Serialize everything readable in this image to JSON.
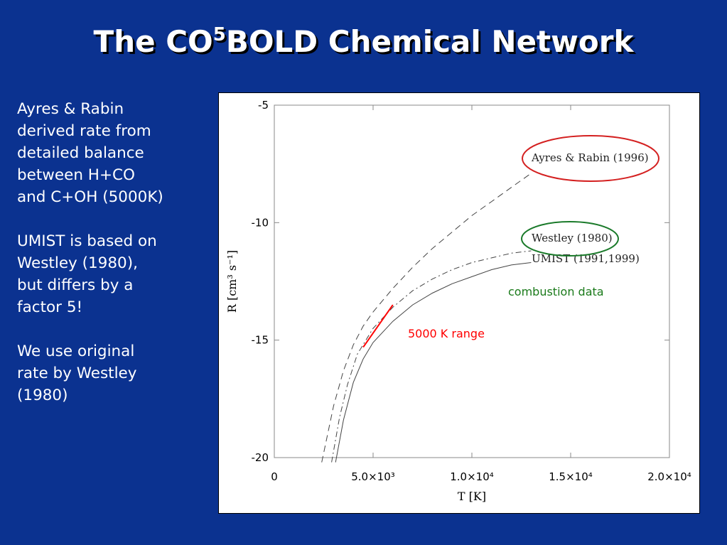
{
  "slide": {
    "title_pre": "The CO",
    "title_sup": "5",
    "title_post": "BOLD Chemical Network",
    "paragraphs": [
      "Ayres & Rabin\nderived rate from\ndetailed balance\nbetween H+CO\nand C+OH (5000K)",
      "UMIST is based on\nWestley (1980),\nbut differs by a\nfactor 5!",
      "We use original\nrate by Westley\n(1980)"
    ]
  },
  "chart_data": {
    "type": "line",
    "xlabel": "T [K]",
    "ylabel": "R [cm³ s⁻¹]",
    "xlim": [
      0,
      20000
    ],
    "ylim": [
      -20,
      -5
    ],
    "x_ticks": [
      0,
      5000,
      10000,
      15000,
      20000
    ],
    "x_tick_labels": [
      "0",
      "5.0×10³",
      "1.0×10⁴",
      "1.5×10⁴",
      "2.0×10⁴"
    ],
    "y_ticks": [
      -20,
      -15,
      -10,
      -5
    ],
    "y_tick_labels": [
      "-20",
      "-15",
      "-10",
      "-5"
    ],
    "grid": false,
    "series": [
      {
        "name": "Ayres & Rabin (1996)",
        "style": "dashed",
        "x": [
          2400,
          3000,
          3500,
          4000,
          4500,
          5000,
          6000,
          7000,
          8000,
          9000,
          10000,
          11000,
          12000,
          13000
        ],
        "y": [
          -20.2,
          -17.8,
          -16.3,
          -15.2,
          -14.4,
          -13.8,
          -12.8,
          -11.9,
          -11.1,
          -10.4,
          -9.7,
          -9.1,
          -8.5,
          -7.9
        ]
      },
      {
        "name": "Westley (1980)",
        "style": "dashdot",
        "x": [
          2900,
          3300,
          3700,
          4200,
          5000,
          6000,
          7000,
          8000,
          9000,
          10000,
          11000,
          12000,
          13000
        ],
        "y": [
          -20.2,
          -18.3,
          -16.9,
          -15.6,
          -14.5,
          -13.6,
          -12.9,
          -12.4,
          -12.0,
          -11.7,
          -11.5,
          -11.3,
          -11.2
        ]
      },
      {
        "name": "UMIST (1991,1999)",
        "style": "solid",
        "x": [
          3100,
          3500,
          4000,
          4500,
          5000,
          6000,
          7000,
          8000,
          9000,
          10000,
          11000,
          12000,
          13000
        ],
        "y": [
          -20.2,
          -18.4,
          -16.8,
          -15.8,
          -15.1,
          -14.2,
          -13.5,
          -13.0,
          -12.6,
          -12.3,
          -12.0,
          -11.8,
          -11.7
        ]
      }
    ],
    "annotations": {
      "range_label": "5000 K range",
      "range_color": "#ff0000",
      "range_segment": {
        "x": [
          4500,
          6000
        ],
        "y": [
          -15.3,
          -13.5
        ]
      },
      "combustion_label": "combustion data",
      "combustion_color": "#1a7a1a",
      "ayres_ellipse_color": "#d42020",
      "westley_ellipse_color": "#1a7a2a"
    }
  }
}
